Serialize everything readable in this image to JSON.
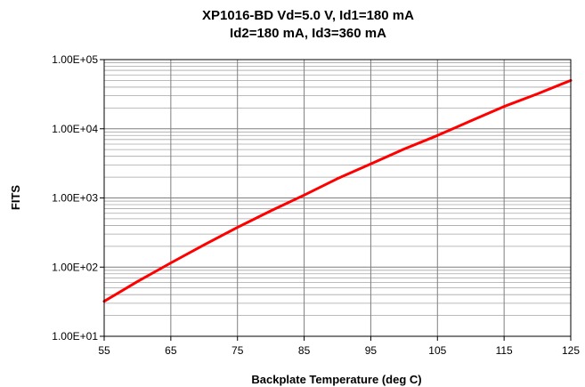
{
  "chart_data": {
    "type": "line",
    "title_line1": "XP1016-BD Vd=5.0 V, Id1=180 mA",
    "title_line2": "Id2=180 mA,  Id3=360 mA",
    "xlabel": "Backplate Temperature (deg C)",
    "ylabel": "FITS",
    "xlim": [
      55,
      125
    ],
    "ylim": [
      10,
      100000
    ],
    "yscale": "log",
    "grid": true,
    "x_ticks": [
      55,
      65,
      75,
      85,
      95,
      105,
      115,
      125
    ],
    "x_tick_labels": [
      "55",
      "65",
      "75",
      "85",
      "95",
      "105",
      "115",
      "125"
    ],
    "y_ticks": [
      10,
      100,
      1000,
      10000,
      100000
    ],
    "y_tick_labels": [
      "1.00E+01",
      "1.00E+02",
      "1.00E+03",
      "1.00E+04",
      "1.00E+05"
    ],
    "series": [
      {
        "color": "#ff0000",
        "x": [
          55,
          60,
          65,
          70,
          75,
          80,
          85,
          90,
          95,
          100,
          105,
          110,
          115,
          120,
          125
        ],
        "y": [
          32,
          62,
          115,
          210,
          375,
          650,
          1100,
          1900,
          3100,
          5100,
          8000,
          13000,
          21000,
          32000,
          50000
        ]
      }
    ]
  }
}
